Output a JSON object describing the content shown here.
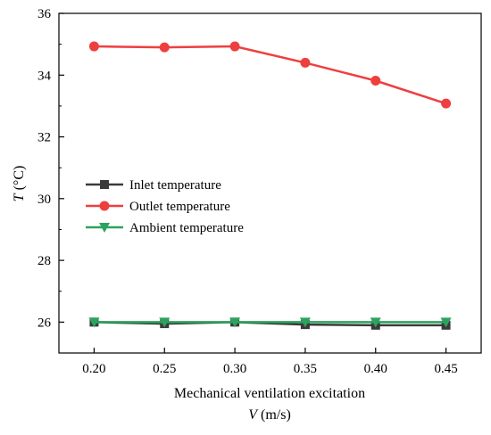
{
  "chart_data": {
    "type": "line",
    "title": "",
    "x": [
      0.2,
      0.25,
      0.3,
      0.35,
      0.4,
      0.45
    ],
    "x_tick_labels": [
      "0.20",
      "0.25",
      "0.30",
      "0.35",
      "0.40",
      "0.45"
    ],
    "xlim": [
      0.175,
      0.475
    ],
    "xlabel_line1": "Mechanical ventilation excitation",
    "xlabel_var": "V",
    "xlabel_unit": " (m/s)",
    "ylabel_var": "T",
    "ylabel_unit": " (°C)",
    "ylim": [
      25,
      36
    ],
    "y_ticks": [
      26,
      28,
      30,
      32,
      34,
      36
    ],
    "y_tick_labels": [
      "26",
      "28",
      "30",
      "32",
      "34",
      "36"
    ],
    "grid": false,
    "legend_position": "center-left",
    "series": [
      {
        "name": "Inlet temperature",
        "color": "#3a3a3a",
        "marker": "square",
        "values": [
          26.0,
          25.95,
          26.0,
          25.92,
          25.9,
          25.9
        ]
      },
      {
        "name": "Outlet temperature",
        "color": "#ee3f3f",
        "marker": "circle",
        "values": [
          34.93,
          34.9,
          34.93,
          34.4,
          33.82,
          33.08
        ]
      },
      {
        "name": "Ambient temperature",
        "color": "#2ca35c",
        "marker": "triangle-down",
        "values": [
          26.0,
          26.0,
          26.0,
          26.0,
          26.0,
          26.0
        ]
      }
    ]
  }
}
